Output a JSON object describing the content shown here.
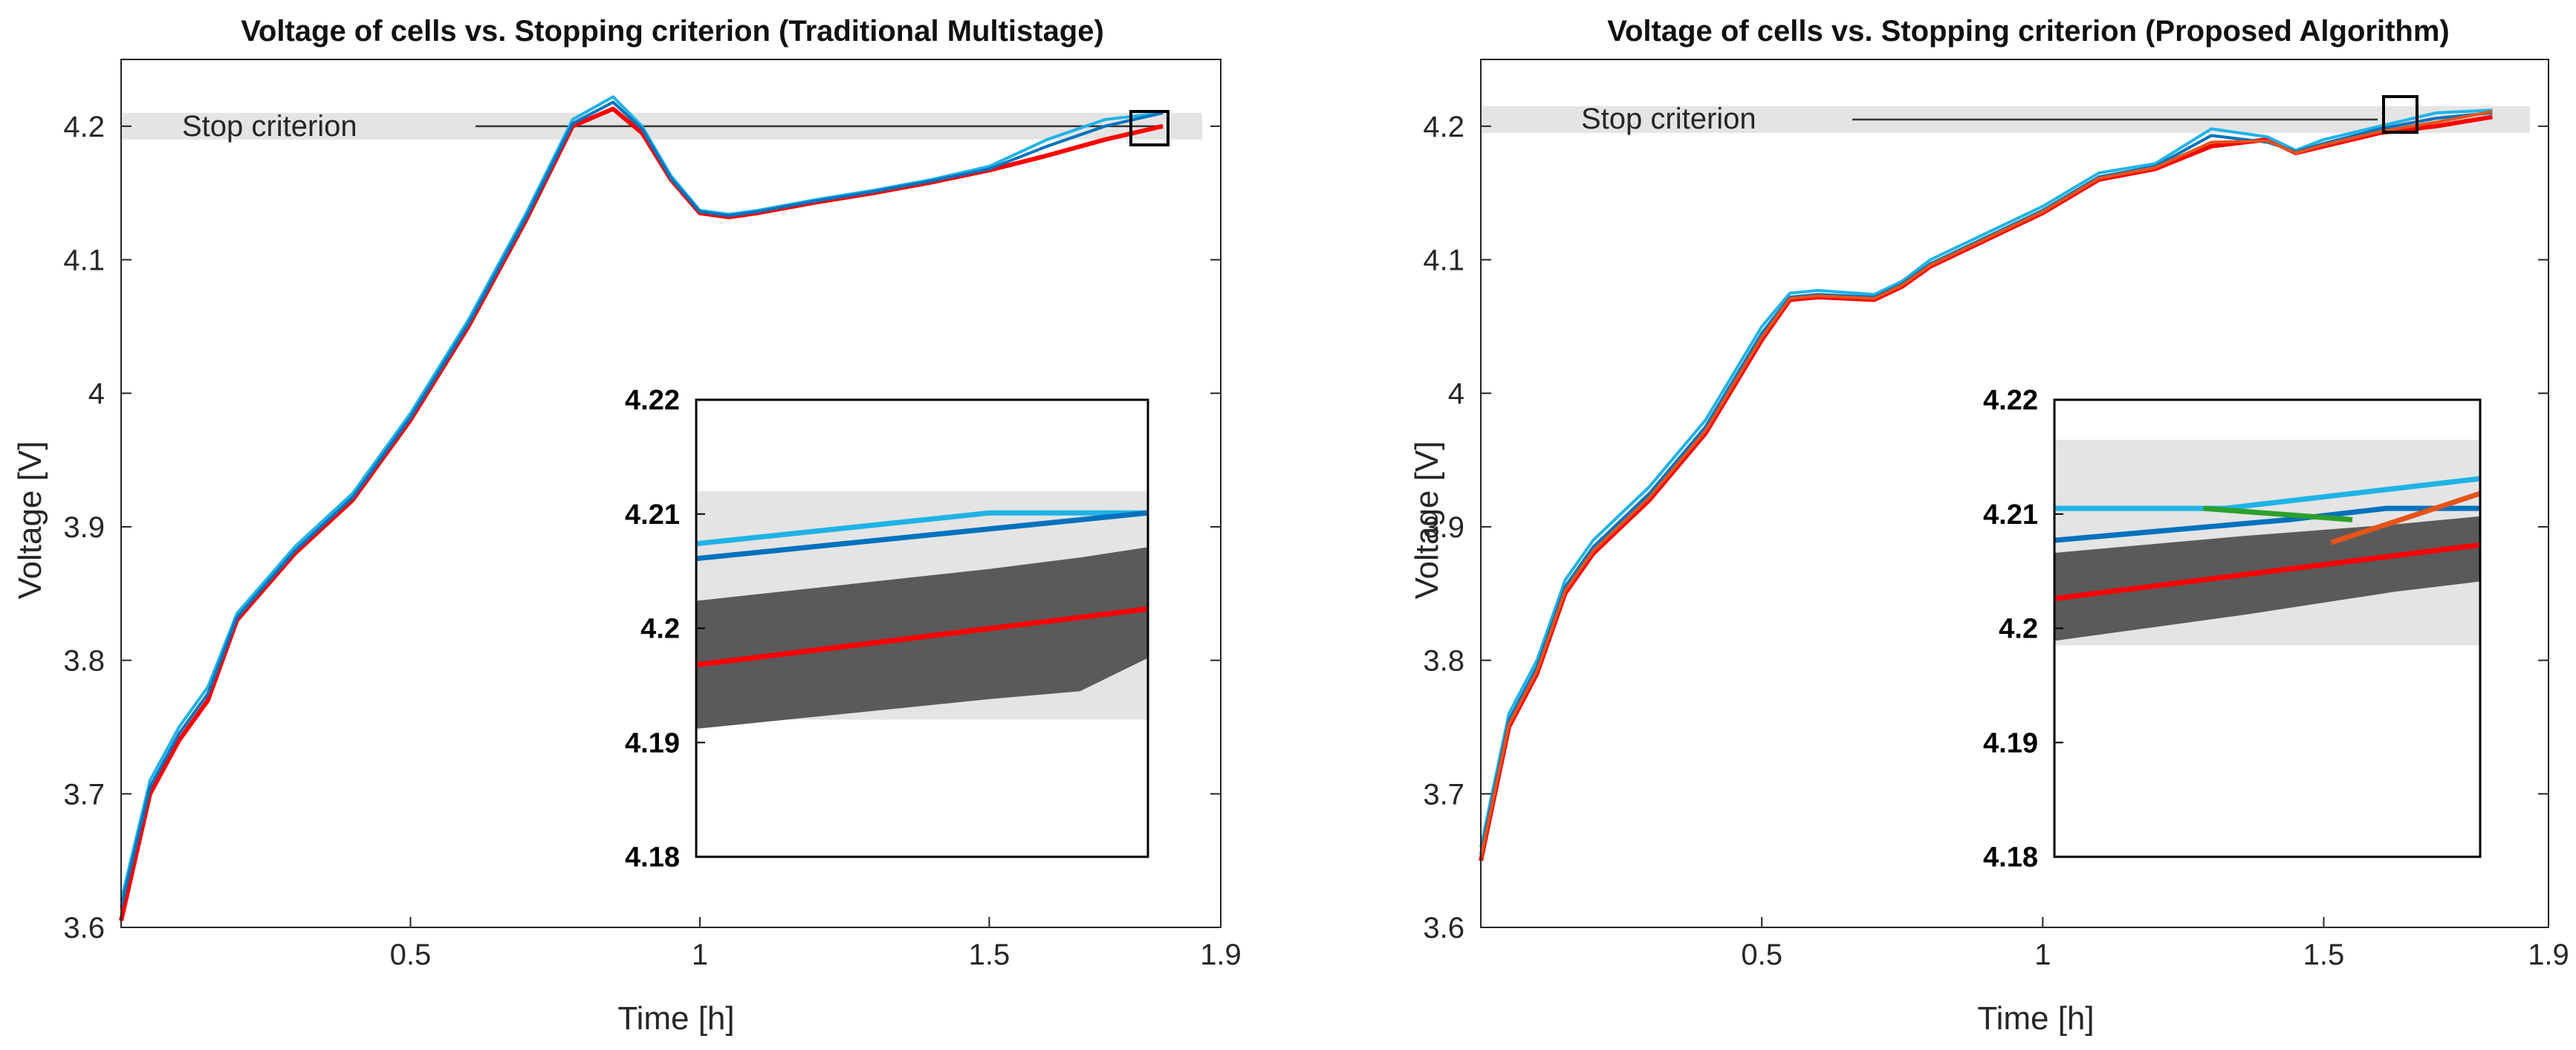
{
  "chart_data": [
    {
      "type": "line",
      "title": "Voltage of cells vs. Stopping criterion (Traditional Multistage)",
      "xlabel": "Time [h]",
      "ylabel": "Voltage [V]",
      "xlim": [
        0,
        1.9
      ],
      "ylim": [
        3.6,
        4.25
      ],
      "xticks": [
        0.5,
        1,
        1.5,
        1.9
      ],
      "xtick_labels": [
        "0.5",
        "1",
        "1.5",
        "1.9"
      ],
      "yticks": [
        3.6,
        3.7,
        3.8,
        3.9,
        4.0,
        4.1,
        4.2
      ],
      "ytick_labels": [
        "3.6",
        "3.7",
        "3.8",
        "3.9",
        "4",
        "4.1",
        "4.2"
      ],
      "stop_criterion": {
        "label": "Stop criterion",
        "value": 4.2,
        "band": [
          4.19,
          4.21
        ]
      },
      "series": [
        {
          "name": "Red cell",
          "color": "#ff0000",
          "x": [
            0,
            0.05,
            0.1,
            0.15,
            0.2,
            0.3,
            0.4,
            0.5,
            0.6,
            0.7,
            0.78,
            0.85,
            0.9,
            0.95,
            1.0,
            1.05,
            1.1,
            1.2,
            1.3,
            1.4,
            1.5,
            1.6,
            1.7,
            1.8
          ],
          "y": [
            3.605,
            3.7,
            3.74,
            3.77,
            3.83,
            3.88,
            3.92,
            3.98,
            4.05,
            4.13,
            4.2,
            4.213,
            4.195,
            4.16,
            4.135,
            4.132,
            4.135,
            4.143,
            4.15,
            4.158,
            4.167,
            4.178,
            4.19,
            4.2
          ]
        },
        {
          "name": "Light blue cell",
          "color": "#1fb3e6",
          "x": [
            0,
            0.05,
            0.1,
            0.15,
            0.2,
            0.3,
            0.4,
            0.5,
            0.6,
            0.7,
            0.78,
            0.85,
            0.9,
            0.95,
            1.0,
            1.05,
            1.1,
            1.2,
            1.3,
            1.4,
            1.5,
            1.6,
            1.7,
            1.8
          ],
          "y": [
            3.62,
            3.71,
            3.75,
            3.78,
            3.835,
            3.885,
            3.925,
            3.985,
            4.055,
            4.135,
            4.205,
            4.222,
            4.2,
            4.163,
            4.137,
            4.134,
            4.137,
            4.145,
            4.152,
            4.16,
            4.17,
            4.19,
            4.205,
            4.21
          ]
        },
        {
          "name": "Dark blue cell",
          "color": "#0072bd",
          "x": [
            0,
            0.05,
            0.1,
            0.15,
            0.2,
            0.3,
            0.4,
            0.5,
            0.6,
            0.7,
            0.78,
            0.85,
            0.9,
            0.95,
            1.0,
            1.05,
            1.1,
            1.2,
            1.3,
            1.4,
            1.5,
            1.6,
            1.7,
            1.8
          ],
          "y": [
            3.615,
            3.705,
            3.745,
            3.775,
            3.832,
            3.882,
            3.922,
            3.982,
            4.052,
            4.132,
            4.202,
            4.218,
            4.198,
            4.161,
            4.136,
            4.133,
            4.136,
            4.144,
            4.151,
            4.159,
            4.168,
            4.185,
            4.2,
            4.21
          ]
        }
      ],
      "inset": {
        "ylim": [
          4.18,
          4.22
        ],
        "yticks": [
          4.18,
          4.19,
          4.2,
          4.21,
          4.22
        ],
        "ytick_labels": [
          "4.18",
          "4.19",
          "4.2",
          "4.21",
          "4.22"
        ],
        "stop_band": [
          4.192,
          4.212
        ],
        "gray_band": {
          "x": [
            0,
            0.65,
            0.85,
            1
          ],
          "lower": [
            4.1912,
            4.1938,
            4.1945,
            4.1974
          ],
          "upper": [
            4.2024,
            4.2052,
            4.2062,
            4.2071
          ]
        },
        "series": [
          {
            "name": "Light blue cell",
            "color": "#1fb3e6",
            "x": [
              0,
              0.65,
              1
            ],
            "y": [
              4.2074,
              4.2101,
              4.2101
            ]
          },
          {
            "name": "Dark blue cell",
            "color": "#0072bd",
            "x": [
              0,
              1
            ],
            "y": [
              4.2061,
              4.2101
            ]
          },
          {
            "name": "Red cell",
            "color": "#ff0000",
            "x": [
              0,
              1
            ],
            "y": [
              4.1968,
              4.2017
            ]
          }
        ]
      }
    },
    {
      "type": "line",
      "title": "Voltage of cells vs. Stopping criterion (Proposed Algorithm)",
      "xlabel": "Time [h]",
      "ylabel": "Voltage [V]",
      "xlim": [
        0,
        1.9
      ],
      "ylim": [
        3.6,
        4.25
      ],
      "xticks": [
        0.5,
        1,
        1.5,
        1.9
      ],
      "xtick_labels": [
        "0.5",
        "1",
        "1.5",
        "1.9"
      ],
      "yticks": [
        3.6,
        3.7,
        3.8,
        3.9,
        4.0,
        4.1,
        4.2
      ],
      "ytick_labels": [
        "3.6",
        "3.7",
        "3.8",
        "3.9",
        "4",
        "4.1",
        "4.2"
      ],
      "stop_criterion": {
        "label": "Stop criterion",
        "value": 4.205,
        "band": [
          4.195,
          4.215
        ]
      },
      "series": [
        {
          "name": "Red cell",
          "color": "#ff0000",
          "x": [
            0,
            0.05,
            0.1,
            0.15,
            0.2,
            0.3,
            0.4,
            0.5,
            0.55,
            0.6,
            0.7,
            0.75,
            0.8,
            0.9,
            1.0,
            1.1,
            1.2,
            1.3,
            1.4,
            1.45,
            1.5,
            1.6,
            1.7,
            1.8
          ],
          "y": [
            3.65,
            3.75,
            3.79,
            3.85,
            3.88,
            3.92,
            3.97,
            4.04,
            4.07,
            4.072,
            4.07,
            4.08,
            4.095,
            4.115,
            4.135,
            4.16,
            4.168,
            4.185,
            4.19,
            4.18,
            4.185,
            4.195,
            4.2,
            4.207
          ]
        },
        {
          "name": "Light blue cell",
          "color": "#1fb3e6",
          "x": [
            0,
            0.05,
            0.1,
            0.15,
            0.2,
            0.3,
            0.4,
            0.5,
            0.55,
            0.6,
            0.7,
            0.75,
            0.8,
            0.9,
            1.0,
            1.1,
            1.2,
            1.3,
            1.4,
            1.45,
            1.5,
            1.6,
            1.7,
            1.8
          ],
          "y": [
            3.66,
            3.76,
            3.8,
            3.86,
            3.89,
            3.93,
            3.98,
            4.05,
            4.075,
            4.077,
            4.074,
            4.084,
            4.1,
            4.12,
            4.14,
            4.165,
            4.172,
            4.198,
            4.192,
            4.182,
            4.19,
            4.2,
            4.21,
            4.212
          ]
        },
        {
          "name": "Dark blue cell",
          "color": "#0072bd",
          "x": [
            0,
            0.05,
            0.1,
            0.15,
            0.2,
            0.3,
            0.4,
            0.5,
            0.55,
            0.6,
            0.7,
            0.75,
            0.8,
            0.9,
            1.0,
            1.1,
            1.2,
            1.3,
            1.4,
            1.45,
            1.5,
            1.6,
            1.7,
            1.8
          ],
          "y": [
            3.655,
            3.755,
            3.795,
            3.855,
            3.885,
            3.925,
            3.975,
            4.045,
            4.072,
            4.074,
            4.072,
            4.082,
            4.097,
            4.117,
            4.137,
            4.162,
            4.17,
            4.193,
            4.188,
            4.181,
            4.187,
            4.198,
            4.206,
            4.21
          ]
        },
        {
          "name": "Orange cell",
          "color": "#e5531a",
          "x": [
            0,
            0.05,
            0.1,
            0.15,
            0.2,
            0.3,
            0.4,
            0.5,
            0.55,
            0.6,
            0.7,
            0.75,
            0.8,
            0.9,
            1.0,
            1.1,
            1.2,
            1.3,
            1.4,
            1.45,
            1.5,
            1.6,
            1.7,
            1.8
          ],
          "y": [
            3.652,
            3.752,
            3.792,
            3.852,
            3.882,
            3.922,
            3.972,
            4.042,
            4.071,
            4.073,
            4.071,
            4.081,
            4.096,
            4.116,
            4.136,
            4.161,
            4.169,
            4.188,
            4.189,
            4.18,
            4.186,
            4.196,
            4.203,
            4.211
          ]
        }
      ],
      "inset": {
        "ylim": [
          4.18,
          4.22
        ],
        "yticks": [
          4.18,
          4.19,
          4.2,
          4.21,
          4.22
        ],
        "ytick_labels": [
          "4.18",
          "4.19",
          "4.2",
          "4.21",
          "4.22"
        ],
        "stop_band": [
          4.1985,
          4.2165
        ],
        "gray_band": {
          "x": [
            0,
            0.45,
            0.8,
            1
          ],
          "lower": [
            4.1989,
            4.2012,
            4.2032,
            4.2041
          ],
          "upper": [
            4.2066,
            4.2081,
            4.2091,
            4.2098
          ]
        },
        "series": [
          {
            "name": "Light blue cell",
            "color": "#1fb3e6",
            "x": [
              0,
              0.4,
              1
            ],
            "y": [
              4.2105,
              4.2105,
              4.2131
            ]
          },
          {
            "name": "Dark blue cell",
            "color": "#0072bd",
            "x": [
              0,
              0.55,
              0.78,
              1
            ],
            "y": [
              4.2077,
              4.2095,
              4.2105,
              4.2105
            ]
          },
          {
            "name": "Green cell",
            "color": "#2ca02c",
            "x": [
              0.35,
              0.7
            ],
            "y": [
              4.2105,
              4.2095
            ]
          },
          {
            "name": "Orange cell",
            "color": "#e5531a",
            "x": [
              0.65,
              1
            ],
            "y": [
              4.2075,
              4.2118
            ]
          },
          {
            "name": "Red cell",
            "color": "#ff0000",
            "x": [
              0,
              1
            ],
            "y": [
              4.2026,
              4.2073
            ]
          }
        ]
      }
    }
  ]
}
